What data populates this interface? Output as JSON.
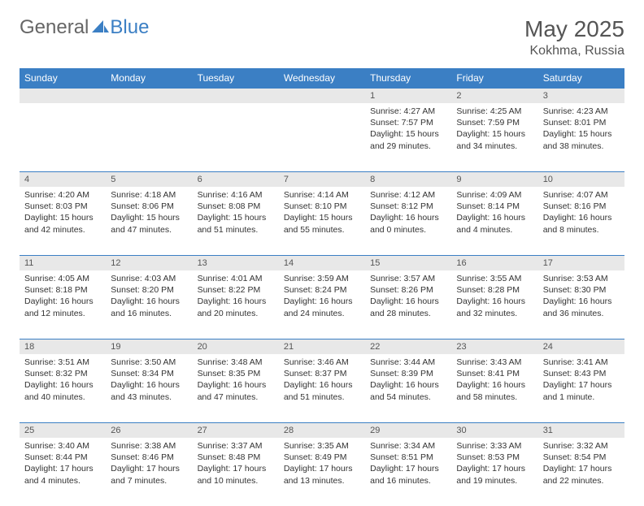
{
  "brand": {
    "part1": "General",
    "part2": "Blue",
    "icon_color": "#3b7fc4"
  },
  "title": "May 2025",
  "location": "Kokhma, Russia",
  "colors": {
    "header_bg": "#3b7fc4",
    "header_text": "#ffffff",
    "daynum_bg": "#e8e8e8",
    "row_border": "#3b7fc4",
    "text": "#333333"
  },
  "day_headers": [
    "Sunday",
    "Monday",
    "Tuesday",
    "Wednesday",
    "Thursday",
    "Friday",
    "Saturday"
  ],
  "weeks": [
    {
      "nums": [
        "",
        "",
        "",
        "",
        "1",
        "2",
        "3"
      ],
      "cells": [
        {
          "sunrise": "",
          "sunset": "",
          "daylight": ""
        },
        {
          "sunrise": "",
          "sunset": "",
          "daylight": ""
        },
        {
          "sunrise": "",
          "sunset": "",
          "daylight": ""
        },
        {
          "sunrise": "",
          "sunset": "",
          "daylight": ""
        },
        {
          "sunrise": "Sunrise: 4:27 AM",
          "sunset": "Sunset: 7:57 PM",
          "daylight": "Daylight: 15 hours and 29 minutes."
        },
        {
          "sunrise": "Sunrise: 4:25 AM",
          "sunset": "Sunset: 7:59 PM",
          "daylight": "Daylight: 15 hours and 34 minutes."
        },
        {
          "sunrise": "Sunrise: 4:23 AM",
          "sunset": "Sunset: 8:01 PM",
          "daylight": "Daylight: 15 hours and 38 minutes."
        }
      ]
    },
    {
      "nums": [
        "4",
        "5",
        "6",
        "7",
        "8",
        "9",
        "10"
      ],
      "cells": [
        {
          "sunrise": "Sunrise: 4:20 AM",
          "sunset": "Sunset: 8:03 PM",
          "daylight": "Daylight: 15 hours and 42 minutes."
        },
        {
          "sunrise": "Sunrise: 4:18 AM",
          "sunset": "Sunset: 8:06 PM",
          "daylight": "Daylight: 15 hours and 47 minutes."
        },
        {
          "sunrise": "Sunrise: 4:16 AM",
          "sunset": "Sunset: 8:08 PM",
          "daylight": "Daylight: 15 hours and 51 minutes."
        },
        {
          "sunrise": "Sunrise: 4:14 AM",
          "sunset": "Sunset: 8:10 PM",
          "daylight": "Daylight: 15 hours and 55 minutes."
        },
        {
          "sunrise": "Sunrise: 4:12 AM",
          "sunset": "Sunset: 8:12 PM",
          "daylight": "Daylight: 16 hours and 0 minutes."
        },
        {
          "sunrise": "Sunrise: 4:09 AM",
          "sunset": "Sunset: 8:14 PM",
          "daylight": "Daylight: 16 hours and 4 minutes."
        },
        {
          "sunrise": "Sunrise: 4:07 AM",
          "sunset": "Sunset: 8:16 PM",
          "daylight": "Daylight: 16 hours and 8 minutes."
        }
      ]
    },
    {
      "nums": [
        "11",
        "12",
        "13",
        "14",
        "15",
        "16",
        "17"
      ],
      "cells": [
        {
          "sunrise": "Sunrise: 4:05 AM",
          "sunset": "Sunset: 8:18 PM",
          "daylight": "Daylight: 16 hours and 12 minutes."
        },
        {
          "sunrise": "Sunrise: 4:03 AM",
          "sunset": "Sunset: 8:20 PM",
          "daylight": "Daylight: 16 hours and 16 minutes."
        },
        {
          "sunrise": "Sunrise: 4:01 AM",
          "sunset": "Sunset: 8:22 PM",
          "daylight": "Daylight: 16 hours and 20 minutes."
        },
        {
          "sunrise": "Sunrise: 3:59 AM",
          "sunset": "Sunset: 8:24 PM",
          "daylight": "Daylight: 16 hours and 24 minutes."
        },
        {
          "sunrise": "Sunrise: 3:57 AM",
          "sunset": "Sunset: 8:26 PM",
          "daylight": "Daylight: 16 hours and 28 minutes."
        },
        {
          "sunrise": "Sunrise: 3:55 AM",
          "sunset": "Sunset: 8:28 PM",
          "daylight": "Daylight: 16 hours and 32 minutes."
        },
        {
          "sunrise": "Sunrise: 3:53 AM",
          "sunset": "Sunset: 8:30 PM",
          "daylight": "Daylight: 16 hours and 36 minutes."
        }
      ]
    },
    {
      "nums": [
        "18",
        "19",
        "20",
        "21",
        "22",
        "23",
        "24"
      ],
      "cells": [
        {
          "sunrise": "Sunrise: 3:51 AM",
          "sunset": "Sunset: 8:32 PM",
          "daylight": "Daylight: 16 hours and 40 minutes."
        },
        {
          "sunrise": "Sunrise: 3:50 AM",
          "sunset": "Sunset: 8:34 PM",
          "daylight": "Daylight: 16 hours and 43 minutes."
        },
        {
          "sunrise": "Sunrise: 3:48 AM",
          "sunset": "Sunset: 8:35 PM",
          "daylight": "Daylight: 16 hours and 47 minutes."
        },
        {
          "sunrise": "Sunrise: 3:46 AM",
          "sunset": "Sunset: 8:37 PM",
          "daylight": "Daylight: 16 hours and 51 minutes."
        },
        {
          "sunrise": "Sunrise: 3:44 AM",
          "sunset": "Sunset: 8:39 PM",
          "daylight": "Daylight: 16 hours and 54 minutes."
        },
        {
          "sunrise": "Sunrise: 3:43 AM",
          "sunset": "Sunset: 8:41 PM",
          "daylight": "Daylight: 16 hours and 58 minutes."
        },
        {
          "sunrise": "Sunrise: 3:41 AM",
          "sunset": "Sunset: 8:43 PM",
          "daylight": "Daylight: 17 hours and 1 minute."
        }
      ]
    },
    {
      "nums": [
        "25",
        "26",
        "27",
        "28",
        "29",
        "30",
        "31"
      ],
      "cells": [
        {
          "sunrise": "Sunrise: 3:40 AM",
          "sunset": "Sunset: 8:44 PM",
          "daylight": "Daylight: 17 hours and 4 minutes."
        },
        {
          "sunrise": "Sunrise: 3:38 AM",
          "sunset": "Sunset: 8:46 PM",
          "daylight": "Daylight: 17 hours and 7 minutes."
        },
        {
          "sunrise": "Sunrise: 3:37 AM",
          "sunset": "Sunset: 8:48 PM",
          "daylight": "Daylight: 17 hours and 10 minutes."
        },
        {
          "sunrise": "Sunrise: 3:35 AM",
          "sunset": "Sunset: 8:49 PM",
          "daylight": "Daylight: 17 hours and 13 minutes."
        },
        {
          "sunrise": "Sunrise: 3:34 AM",
          "sunset": "Sunset: 8:51 PM",
          "daylight": "Daylight: 17 hours and 16 minutes."
        },
        {
          "sunrise": "Sunrise: 3:33 AM",
          "sunset": "Sunset: 8:53 PM",
          "daylight": "Daylight: 17 hours and 19 minutes."
        },
        {
          "sunrise": "Sunrise: 3:32 AM",
          "sunset": "Sunset: 8:54 PM",
          "daylight": "Daylight: 17 hours and 22 minutes."
        }
      ]
    }
  ]
}
